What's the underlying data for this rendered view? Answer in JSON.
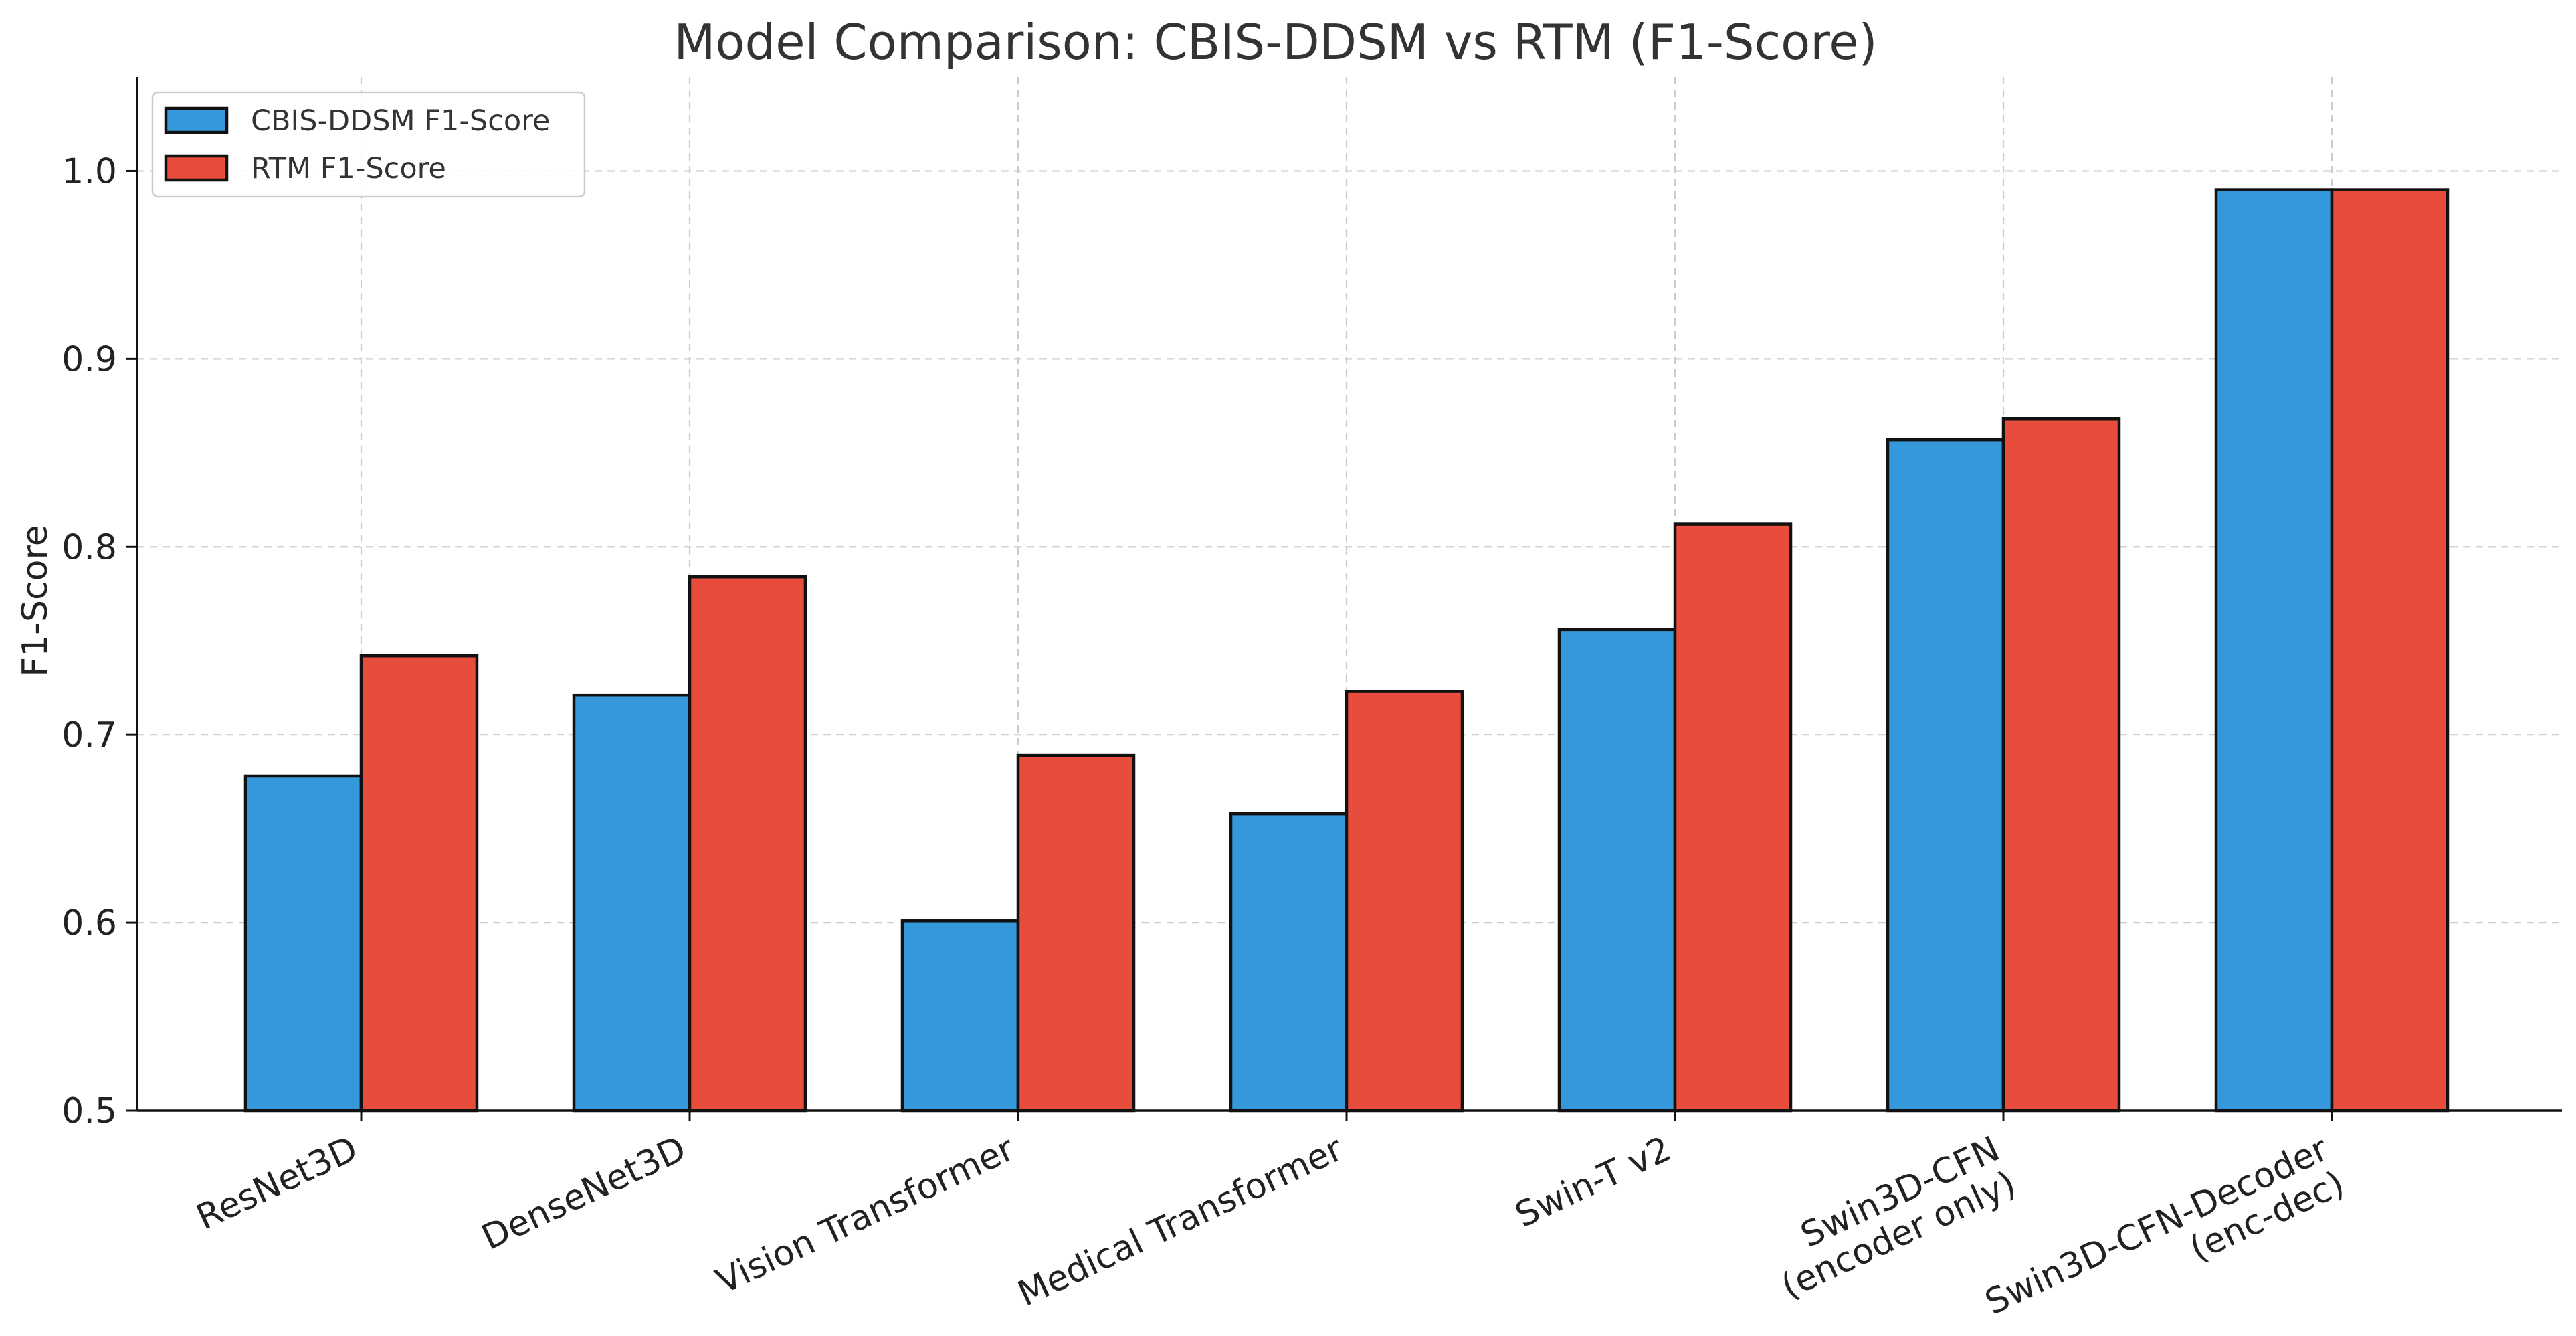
{
  "chart_data": {
    "type": "bar",
    "title": "Model Comparison: CBIS-DDSM vs RTM (F1-Score)",
    "xlabel": "",
    "ylabel": "F1-Score",
    "ylim": [
      0.5,
      1.05
    ],
    "yticks": [
      "0.5",
      "0.6",
      "0.7",
      "0.8",
      "0.9",
      "1.0"
    ],
    "ytick_values": [
      0.5,
      0.6,
      0.7,
      0.8,
      0.9,
      1.0
    ],
    "grid": true,
    "legend_position": "top-left",
    "categories": [
      [
        "ResNet3D"
      ],
      [
        "DenseNet3D"
      ],
      [
        "Vision Transformer"
      ],
      [
        "Medical Transformer"
      ],
      [
        "Swin-T v2"
      ],
      [
        "Swin3D-CFN",
        "(encoder only)"
      ],
      [
        "Swin3D-CFN-Decoder",
        "(enc-dec)"
      ]
    ],
    "series": [
      {
        "name": "CBIS-DDSM F1-Score",
        "color": "#3498db",
        "values": [
          0.678,
          0.721,
          0.601,
          0.658,
          0.756,
          0.857,
          0.99
        ]
      },
      {
        "name": "RTM F1-Score",
        "color": "#e74c3c",
        "values": [
          0.742,
          0.784,
          0.689,
          0.723,
          0.812,
          0.868,
          0.99
        ]
      }
    ]
  }
}
